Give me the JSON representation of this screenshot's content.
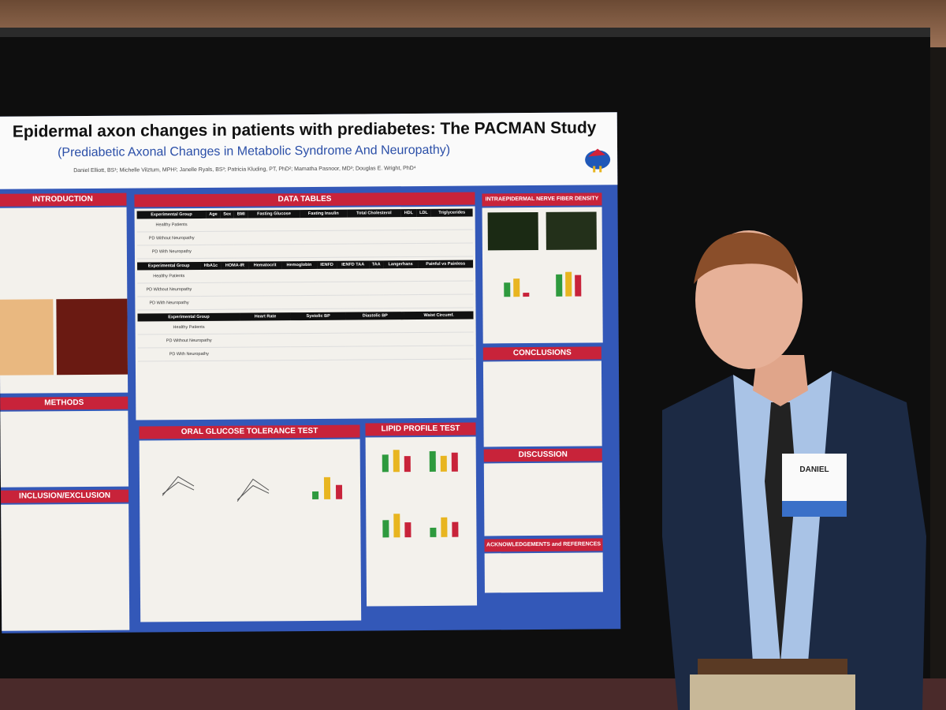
{
  "poster": {
    "title": "Epidermal axon changes in patients with prediabetes: The PACMAN Study",
    "subtitle": "(Prediabetic Axonal Changes in Metabolic Syndrome And Neuropathy)",
    "authors": "Daniel Elliott, BS¹; Michelle Vilztum, MPH²; Janelle Ryals, BS³; Patricia Kluding, PT, PhD²; Mamatha Pasnoor, MD³; Douglas E. Wright, PhD⁴",
    "sections": {
      "introduction": "INTRODUCTION",
      "methods": "METHODS",
      "inclusion": "INCLUSION/EXCLUSION",
      "data_tables": "DATA TABLES",
      "ogtt": "ORAL GLUCOSE TOLERANCE TEST",
      "lipid": "LIPID PROFILE TEST",
      "ienfd": "INTRAEPIDERMAL NERVE FIBER DENSITY",
      "conclusions": "CONCLUSIONS",
      "discussion": "DISCUSSION",
      "acknowledgements": "ACKNOWLEDGEMENTS and REFERENCES"
    },
    "tables": [
      {
        "headers": [
          "Experimental Group",
          "Age",
          "Sex",
          "BMI",
          "Fasting Glucose",
          "Fasting Insulin",
          "Total Cholesterol",
          "HDL",
          "LDL",
          "Triglycerides"
        ],
        "rows": [
          "Healthy Patients",
          "PD Without Neuropathy",
          "PD With Neuropathy"
        ]
      },
      {
        "headers": [
          "Experimental Group",
          "HbA1c",
          "HOMA-IR",
          "Hematocrit",
          "Hemoglobin",
          "IENFD",
          "IENFD TAA",
          "TAA",
          "Langerhans",
          "Painful vs Painless"
        ],
        "rows": [
          "Healthy Patients",
          "PD Without Neuropathy",
          "PD With Neuropathy"
        ]
      },
      {
        "headers": [
          "Experimental Group",
          "Heart Rate",
          "Systolic BP",
          "Diastolic BP",
          "Waist Circumf."
        ],
        "rows": [
          "Healthy Patients",
          "PD Without Neuropathy",
          "PD With Neuropathy"
        ]
      }
    ]
  },
  "badge": {
    "name": "DANIEL"
  }
}
